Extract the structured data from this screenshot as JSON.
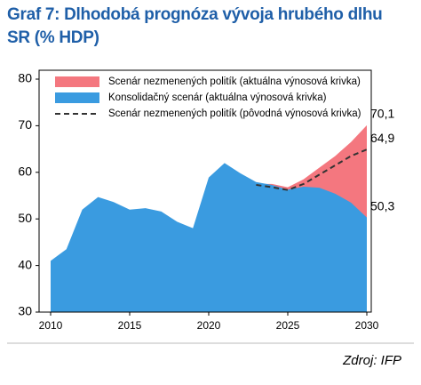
{
  "chart_data": {
    "type": "area",
    "title": "Graf 7: Dlhodobá prognóza vývoja hrubého dlhu SR (% HDP)",
    "source": "Zdroj:  IFP",
    "x": [
      2010,
      2011,
      2012,
      2013,
      2014,
      2015,
      2016,
      2017,
      2018,
      2019,
      2020,
      2021,
      2022,
      2023,
      2024,
      2025,
      2026,
      2027,
      2028,
      2029,
      2030
    ],
    "xlim": [
      2010,
      2030
    ],
    "xticks": [
      2010,
      2015,
      2020,
      2025,
      2030
    ],
    "ylim": [
      30,
      80
    ],
    "yticks": [
      30,
      40,
      50,
      60,
      70,
      80
    ],
    "legend": "top",
    "series": [
      {
        "name": "Scenár nezmenených politík (aktuálna výnosová krivka)",
        "color": "#f4777f",
        "style": "area",
        "values": [
          null,
          null,
          null,
          null,
          null,
          null,
          null,
          null,
          null,
          null,
          null,
          null,
          null,
          57.5,
          57.5,
          56.8,
          58.5,
          61,
          63.5,
          66.5,
          70.1
        ],
        "value_labels": [
          null,
          null,
          null,
          null,
          null,
          null,
          null,
          null,
          null,
          null,
          null,
          null,
          null,
          null,
          null,
          null,
          null,
          null,
          null,
          null,
          "70,1"
        ]
      },
      {
        "name": "Konsolidačný scenár (aktuálna výnosová krivka)",
        "color": "#3a9be0",
        "style": "area",
        "values": [
          41,
          43.5,
          52,
          54.7,
          53.6,
          52,
          52.3,
          51.6,
          49.4,
          48,
          58.9,
          62,
          59.8,
          57.9,
          57.3,
          56.3,
          56.9,
          56.7,
          55.4,
          53.5,
          50.3
        ],
        "value_labels": [
          null,
          null,
          null,
          null,
          null,
          null,
          null,
          null,
          null,
          null,
          null,
          null,
          null,
          null,
          null,
          null,
          null,
          null,
          null,
          null,
          "50,3"
        ]
      },
      {
        "name": "Scenár nezmenených politík (pôvodná výnosová krivka)",
        "color": "#333333",
        "style": "dashed",
        "values": [
          null,
          null,
          null,
          null,
          null,
          null,
          null,
          null,
          null,
          null,
          null,
          null,
          null,
          57.3,
          56.8,
          56.2,
          57.5,
          59.5,
          61.5,
          63.5,
          64.9
        ],
        "value_labels": [
          null,
          null,
          null,
          null,
          null,
          null,
          null,
          null,
          null,
          null,
          null,
          null,
          null,
          null,
          null,
          null,
          null,
          null,
          null,
          null,
          "64,9"
        ]
      }
    ]
  }
}
